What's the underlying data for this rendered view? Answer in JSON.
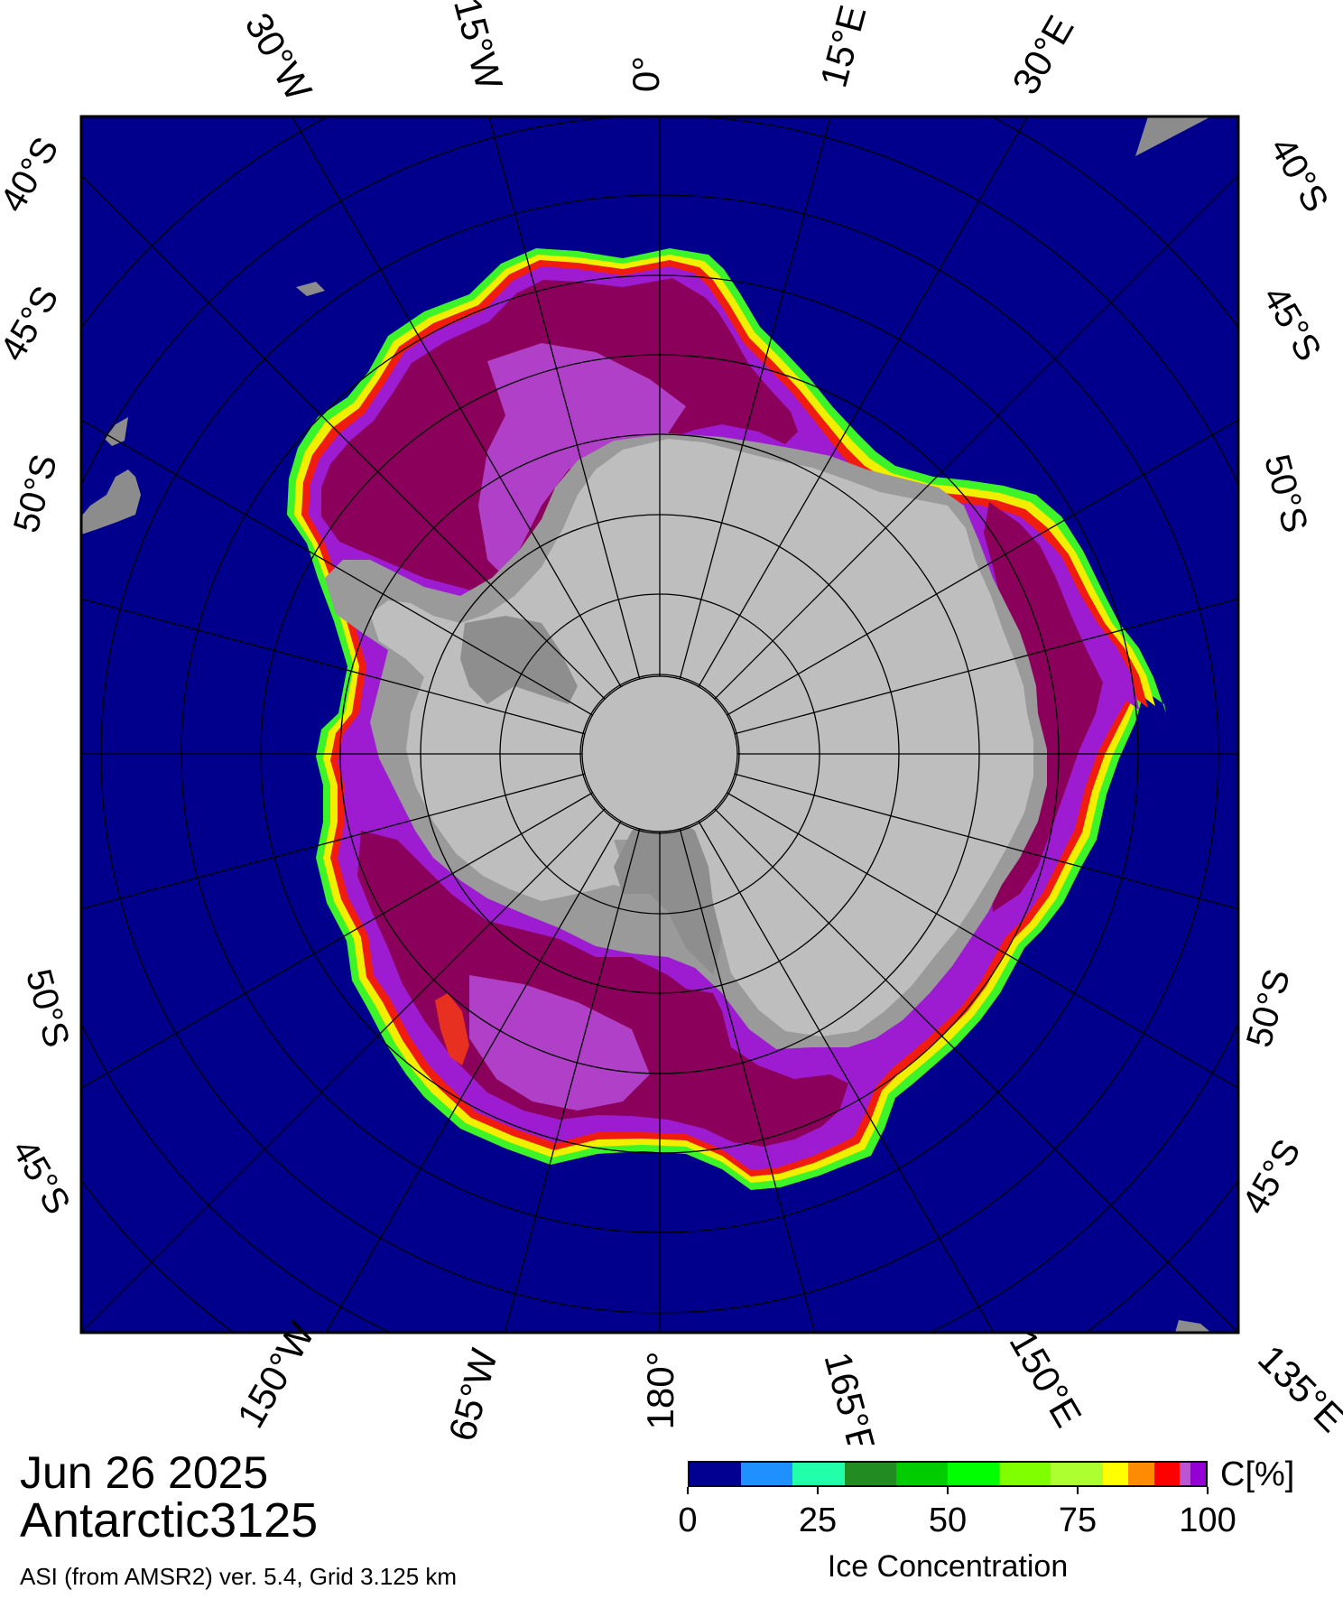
{
  "date": "Jun 26 2025",
  "product_name": "Antarctic3125",
  "source_info": "ASI (from AMSR2) ver. 5.4,  Grid 3.125 km",
  "colors": {
    "ocean": "#00008c",
    "land": "#bebebe",
    "ice_shelf": "#9a9a9a",
    "ice_dense": "#8b005b",
    "ice_purple": "#9a1fd6",
    "ice_magenta": "#c040c0",
    "ice_edge_red": "#ff2000",
    "ice_edge_yellow": "#f0f000",
    "ice_edge_green": "#40ff20"
  },
  "map": {
    "top_longitude_labels": [
      "30°W",
      "15°W",
      "0°",
      "15°E",
      "30°E"
    ],
    "bottom_longitude_labels": [
      "150°W",
      "165°W",
      "180°",
      "165°E",
      "150°E",
      "135°E"
    ],
    "left_latitude_labels": [
      "40°S",
      "45°S",
      "50°S",
      "50°S",
      "45°S"
    ],
    "right_latitude_labels": [
      "40°S",
      "45°S",
      "50°S",
      "50°S",
      "45°S"
    ]
  },
  "colorbar": {
    "unit": "C[%]",
    "title": "Ice Concentration",
    "tick_labels": [
      "0",
      "25",
      "50",
      "75",
      "100"
    ],
    "tick_values": [
      0,
      25,
      50,
      75,
      100
    ],
    "segments": [
      {
        "from": 0,
        "to": 10,
        "color": "#000090"
      },
      {
        "from": 10,
        "to": 20,
        "color": "#1e90ff"
      },
      {
        "from": 20,
        "to": 30,
        "color": "#22ffaa"
      },
      {
        "from": 30,
        "to": 40,
        "color": "#228b22"
      },
      {
        "from": 40,
        "to": 50,
        "color": "#00cc00"
      },
      {
        "from": 50,
        "to": 60,
        "color": "#00ff00"
      },
      {
        "from": 60,
        "to": 70,
        "color": "#7fff00"
      },
      {
        "from": 70,
        "to": 80,
        "color": "#adff2f"
      },
      {
        "from": 80,
        "to": 85,
        "color": "#ffff00"
      },
      {
        "from": 85,
        "to": 90,
        "color": "#ff8c00"
      },
      {
        "from": 90,
        "to": 95,
        "color": "#ff0000"
      },
      {
        "from": 95,
        "to": 97,
        "color": "#ba55d3"
      },
      {
        "from": 97,
        "to": 100,
        "color": "#9400d3"
      }
    ]
  }
}
